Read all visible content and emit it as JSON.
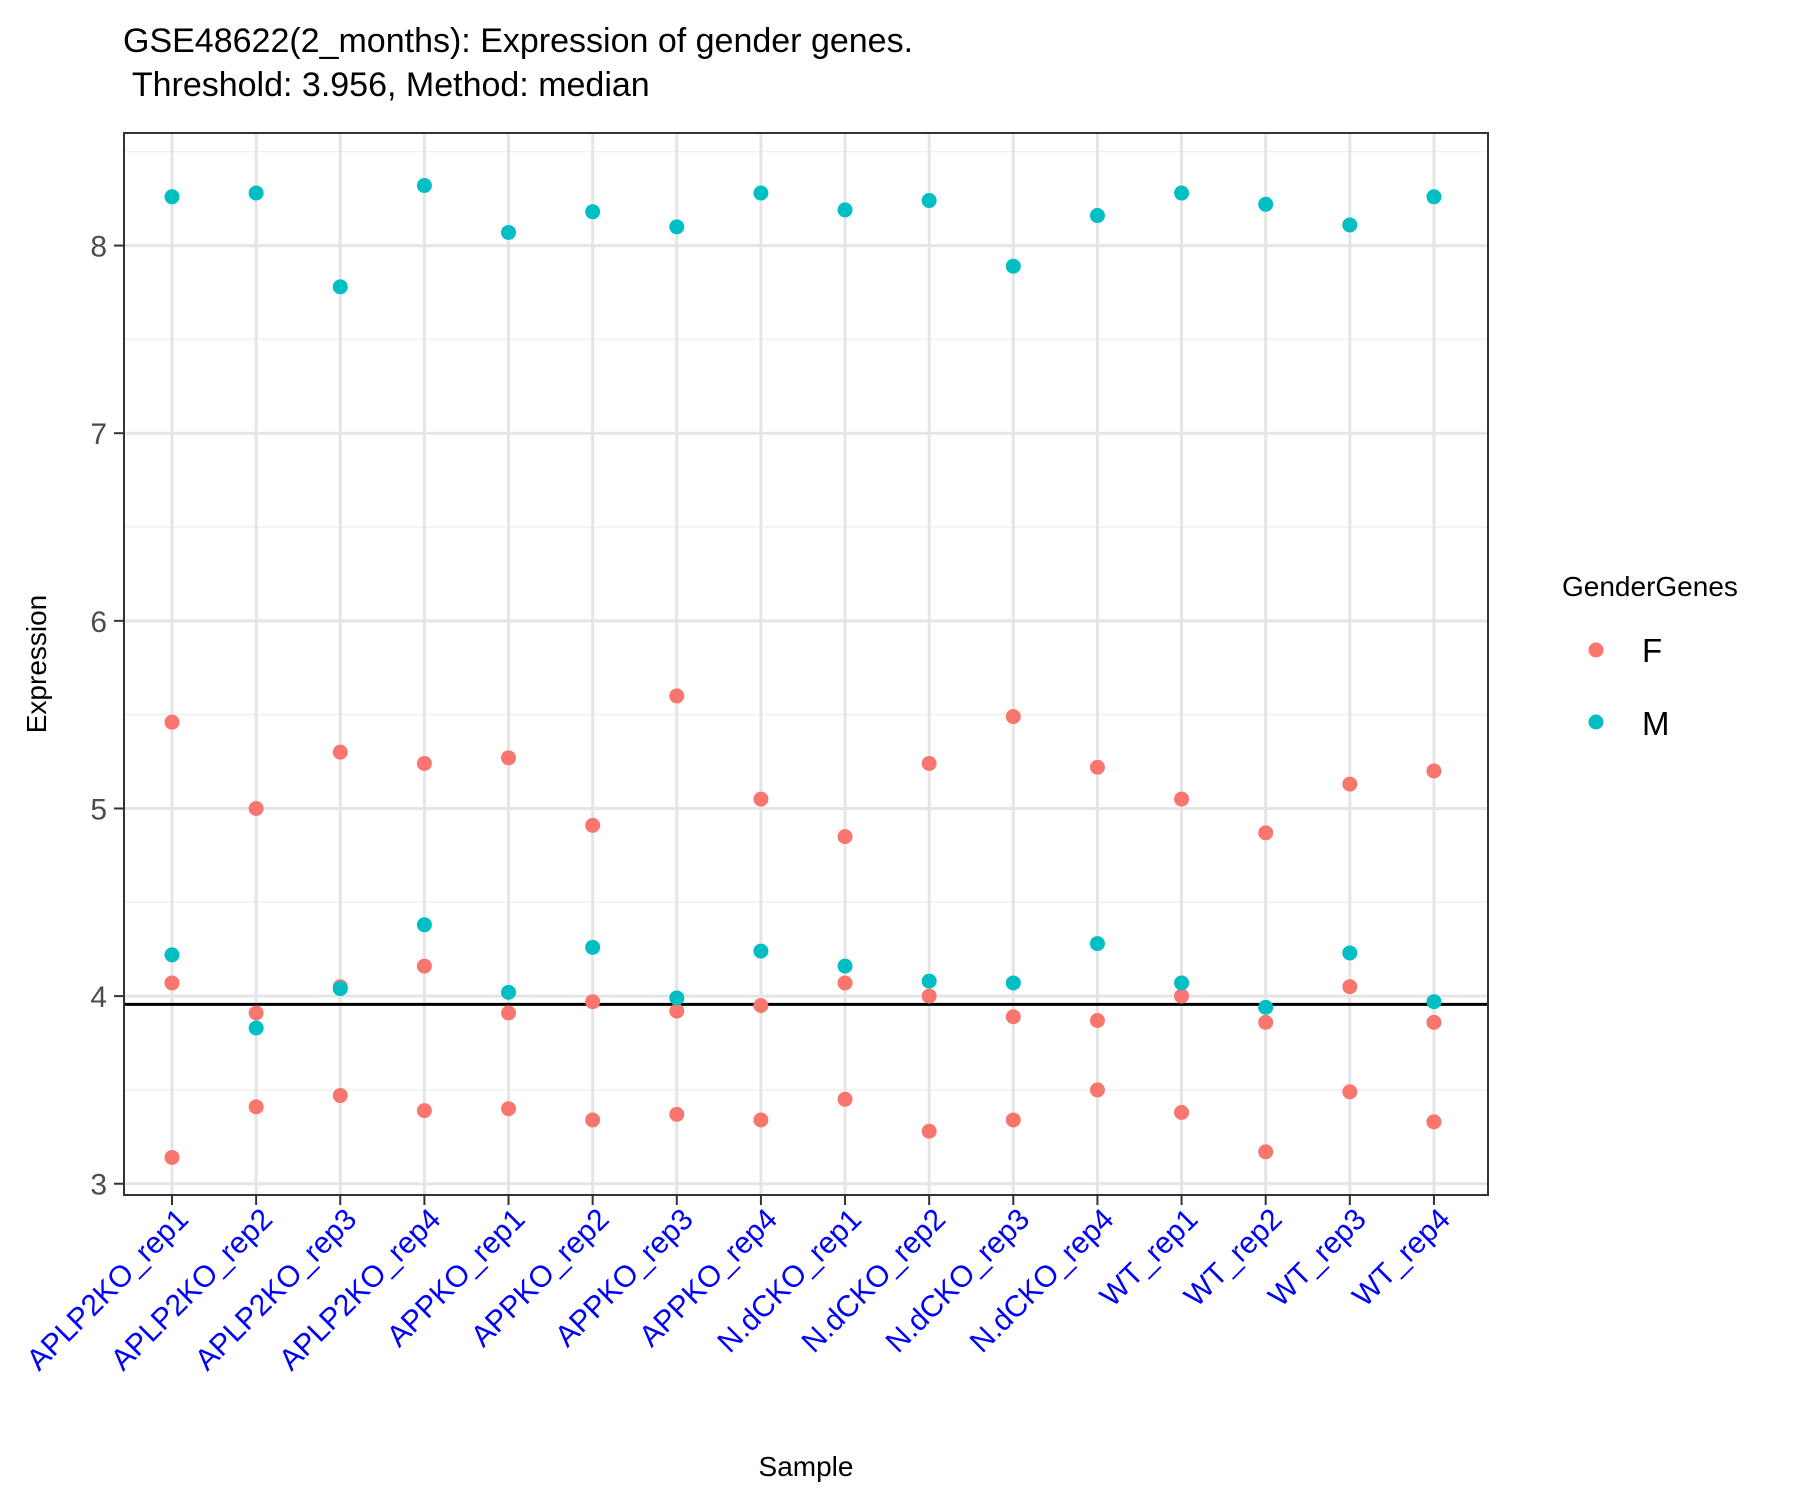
{
  "chart_data": {
    "type": "scatter",
    "title": "GSE48622(2_months): Expression of gender genes.",
    "subtitle": " Threshold: 3.956, Method: median",
    "xlabel": "Sample",
    "ylabel": "Expression",
    "ylim": [
      2.94,
      8.6
    ],
    "yticks": [
      3,
      4,
      5,
      6,
      7,
      8
    ],
    "grid": true,
    "threshold": 3.956,
    "legend": {
      "title": "GenderGenes",
      "position": "right"
    },
    "categories": [
      "APLP2KO_rep1",
      "APLP2KO_rep2",
      "APLP2KO_rep3",
      "APLP2KO_rep4",
      "APPKO_rep1",
      "APPKO_rep2",
      "APPKO_rep3",
      "APPKO_rep4",
      "N.dCKO_rep1",
      "N.dCKO_rep2",
      "N.dCKO_rep3",
      "N.dCKO_rep4",
      "WT_rep1",
      "WT_rep2",
      "WT_rep3",
      "WT_rep4"
    ],
    "series": [
      {
        "name": "F",
        "color": "#F8766D",
        "points": [
          [
            5.46,
            4.07,
            3.14
          ],
          [
            5.0,
            3.91,
            3.41
          ],
          [
            5.3,
            4.05,
            3.47
          ],
          [
            5.24,
            4.16,
            3.39
          ],
          [
            5.27,
            3.91,
            3.4
          ],
          [
            4.91,
            3.97,
            3.34
          ],
          [
            5.6,
            3.92,
            3.37
          ],
          [
            5.05,
            3.95,
            3.34
          ],
          [
            4.85,
            4.07,
            3.45
          ],
          [
            5.24,
            4.0,
            3.28
          ],
          [
            5.49,
            3.89,
            3.34
          ],
          [
            5.22,
            3.87,
            3.5
          ],
          [
            5.05,
            4.0,
            3.38
          ],
          [
            4.87,
            3.86,
            3.17
          ],
          [
            5.13,
            4.05,
            3.49
          ],
          [
            5.2,
            3.86,
            3.33
          ]
        ]
      },
      {
        "name": "M",
        "color": "#00BFC4",
        "points": [
          [
            8.26,
            4.22
          ],
          [
            8.28,
            3.83
          ],
          [
            7.78,
            4.04
          ],
          [
            8.32,
            4.38
          ],
          [
            8.07,
            4.02
          ],
          [
            8.18,
            4.26
          ],
          [
            8.1,
            3.99
          ],
          [
            8.28,
            4.24
          ],
          [
            8.19,
            4.16
          ],
          [
            8.24,
            4.08
          ],
          [
            7.89,
            4.07
          ],
          [
            8.16,
            4.28
          ],
          [
            8.28,
            4.07
          ],
          [
            8.22,
            3.94
          ],
          [
            8.11,
            4.23
          ],
          [
            8.26,
            3.97
          ]
        ]
      }
    ]
  }
}
